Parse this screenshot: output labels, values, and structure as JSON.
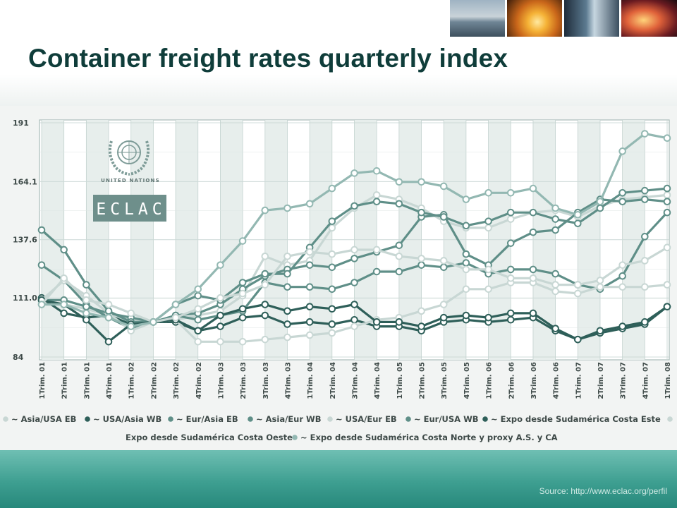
{
  "slide": {
    "title": "Container freight rates quarterly index",
    "source": "Source: http://www.eclac.org/perfil"
  },
  "logo": {
    "org_label": "UNITED NATIONS",
    "eclac_label": "ECLAC",
    "icon": "un-emblem-icon"
  },
  "colors": {
    "dark_teal": "#2e5f59",
    "mid_teal": "#5f8f88",
    "light_teal": "#93b8b2",
    "pale": "#c8d7d4",
    "footer": "#3e9f91",
    "title": "#0f3d3a"
  },
  "chart_data": {
    "type": "line",
    "ylim": [
      84,
      191
    ],
    "y_ticks": [
      "191",
      "164.1",
      "137.6",
      "111.0",
      "84"
    ],
    "x_labels": [
      "1Trim. 01",
      "2Trim. 01",
      "3Trim. 01",
      "4Trim. 01",
      "1Trim. 02",
      "2Trim. 02",
      "3Trim. 02",
      "4Trim. 02",
      "1Trim. 03",
      "2Trim. 03",
      "3Trim. 03",
      "4Trim. 03",
      "1Trim. 04",
      "2Trim. 04",
      "3Trim. 04",
      "4Trim. 04",
      "1Trim. 05",
      "2Trim. 05",
      "3Trim. 05",
      "4Trim. 05",
      "1Trim. 06",
      "2Trim. 06",
      "3Trim. 06",
      "4Trim. 06",
      "1Trim. 07",
      "2Trim. 07",
      "3Trim. 07",
      "4Trim. 07",
      "1Trim. 08"
    ],
    "grid": true,
    "legend_position": "bottom",
    "series": [
      {
        "name": "Asia/USA EB",
        "color": "#c8d7d4",
        "values": [
          109,
          108,
          106,
          103,
          101,
          100,
          101,
          103,
          105,
          112,
          130,
          126,
          128,
          143,
          152,
          158,
          156,
          152,
          146,
          143,
          143,
          147,
          150,
          151,
          148,
          153,
          156,
          157,
          158
        ]
      },
      {
        "name": "USA/Asia WB",
        "color": "#2e5f59",
        "values": [
          111,
          104,
          102,
          103,
          99,
          100,
          100,
          96,
          98,
          102,
          103,
          99,
          100,
          99,
          101,
          98,
          98,
          96,
          100,
          101,
          100,
          101,
          102,
          96,
          92,
          95,
          97,
          99,
          107
        ]
      },
      {
        "name": "Eur/Asia EB",
        "color": "#5f8f88",
        "values": [
          126,
          119,
          108,
          102,
          97,
          100,
          103,
          104,
          108,
          115,
          121,
          124,
          126,
          125,
          129,
          132,
          135,
          148,
          149,
          131,
          126,
          136,
          141,
          142,
          150,
          156,
          155,
          156,
          155
        ]
      },
      {
        "name": "Asia/Eur WB",
        "color": "#5f8f88",
        "values": [
          110,
          110,
          107,
          104,
          102,
          100,
          103,
          101,
          103,
          105,
          118,
          116,
          116,
          115,
          118,
          123,
          123,
          126,
          125,
          127,
          122,
          124,
          124,
          122,
          117,
          115,
          121,
          139,
          150
        ]
      },
      {
        "name": "USA/Eur EB",
        "color": "#c8d7d4",
        "values": [
          110,
          119,
          112,
          104,
          96,
          100,
          101,
          91,
          91,
          91,
          92,
          93,
          94,
          95,
          98,
          101,
          102,
          105,
          108,
          115,
          115,
          118,
          118,
          114,
          113,
          116,
          116,
          116,
          117
        ]
      },
      {
        "name": "Eur/USA WB",
        "color": "#5f8f88",
        "values": [
          142,
          133,
          117,
          105,
          100,
          100,
          108,
          112,
          110,
          118,
          122,
          122,
          134,
          146,
          153,
          155,
          154,
          150,
          148,
          144,
          146,
          150,
          150,
          147,
          145,
          152,
          159,
          160,
          161
        ]
      },
      {
        "name": "Expo desde Sudamérica Costa Este",
        "color": "#2e5f59",
        "values": [
          110,
          108,
          101,
          91,
          99,
          100,
          101,
          96,
          103,
          106,
          108,
          105,
          107,
          106,
          108,
          100,
          100,
          98,
          102,
          103,
          102,
          104,
          104,
          97,
          92,
          96,
          98,
          100,
          107
        ]
      },
      {
        "name": "Expo desde Sudamérica Costa Oeste",
        "color": "#c8d7d4",
        "values": [
          108,
          120,
          110,
          108,
          104,
          100,
          102,
          106,
          111,
          113,
          117,
          130,
          132,
          131,
          133,
          133,
          130,
          129,
          128,
          124,
          124,
          120,
          120,
          117,
          117,
          119,
          126,
          128,
          134
        ]
      },
      {
        "name": "Expo desde Sudamérica Costa Norte y proxy A.S. y CA",
        "color": "#93b8b2",
        "values": [
          108,
          108,
          104,
          102,
          98,
          100,
          108,
          115,
          126,
          137,
          151,
          152,
          154,
          161,
          168,
          169,
          164,
          164,
          162,
          156,
          159,
          159,
          161,
          152,
          149,
          155,
          178,
          186,
          184
        ]
      }
    ],
    "legend": [
      {
        "label": "Asia/USA EB",
        "color": "#c8d7d4"
      },
      {
        "label": "USA/Asia WB",
        "color": "#2e5f59"
      },
      {
        "label": "Eur/Asia EB",
        "color": "#5f8f88"
      },
      {
        "label": "Asia/Eur WB",
        "color": "#5f8f88"
      },
      {
        "label": "USA/Eur EB",
        "color": "#c8d7d4"
      },
      {
        "label": "Eur/USA WB",
        "color": "#5f8f88"
      },
      {
        "label": "Expo desde Sudamérica Costa Este",
        "color": "#2e5f59"
      },
      {
        "label": "Expo desde Sudamérica Costa Oeste",
        "color": "#c8d7d4"
      },
      {
        "label": "Expo desde Sudamérica Costa Norte y proxy A.S. y CA",
        "color": "#93b8b2"
      }
    ]
  }
}
